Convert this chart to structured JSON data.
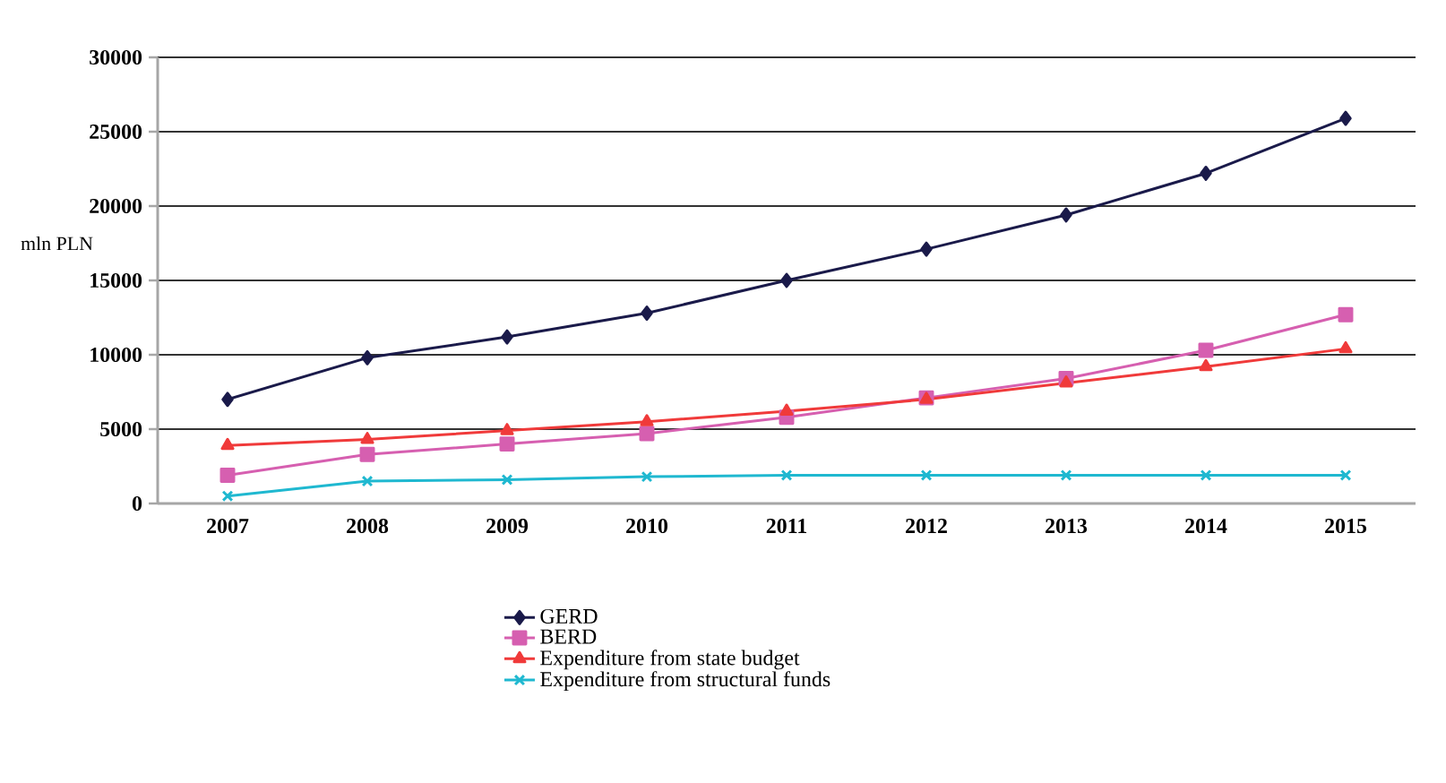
{
  "chart_data": {
    "type": "line",
    "ylabel": "mln PLN",
    "categories": [
      "2007",
      "2008",
      "2009",
      "2010",
      "2011",
      "2012",
      "2013",
      "2014",
      "2015"
    ],
    "series": [
      {
        "name": "GERD",
        "color": "#1a1a4a",
        "marker": "diamond",
        "values": [
          7000,
          9800,
          11200,
          12800,
          15000,
          17100,
          19400,
          22200,
          25900
        ]
      },
      {
        "name": "BERD",
        "color": "#d65fb0",
        "marker": "square",
        "values": [
          1900,
          3300,
          4000,
          4700,
          5800,
          7100,
          8400,
          10300,
          12700
        ]
      },
      {
        "name": "Expenditure from state budget",
        "color": "#f03a3a",
        "marker": "triangle",
        "values": [
          3900,
          4300,
          4900,
          5500,
          6200,
          7000,
          8100,
          9200,
          10400
        ]
      },
      {
        "name": "Expenditure from structural funds",
        "color": "#1fb8d0",
        "marker": "cross",
        "values": [
          500,
          1500,
          1600,
          1800,
          1900,
          1900,
          1900,
          1900,
          1900
        ]
      }
    ],
    "ylim": [
      0,
      30000
    ],
    "yticks": [
      0,
      5000,
      10000,
      15000,
      20000,
      25000,
      30000
    ],
    "grid": "y",
    "legend": "bottom"
  }
}
